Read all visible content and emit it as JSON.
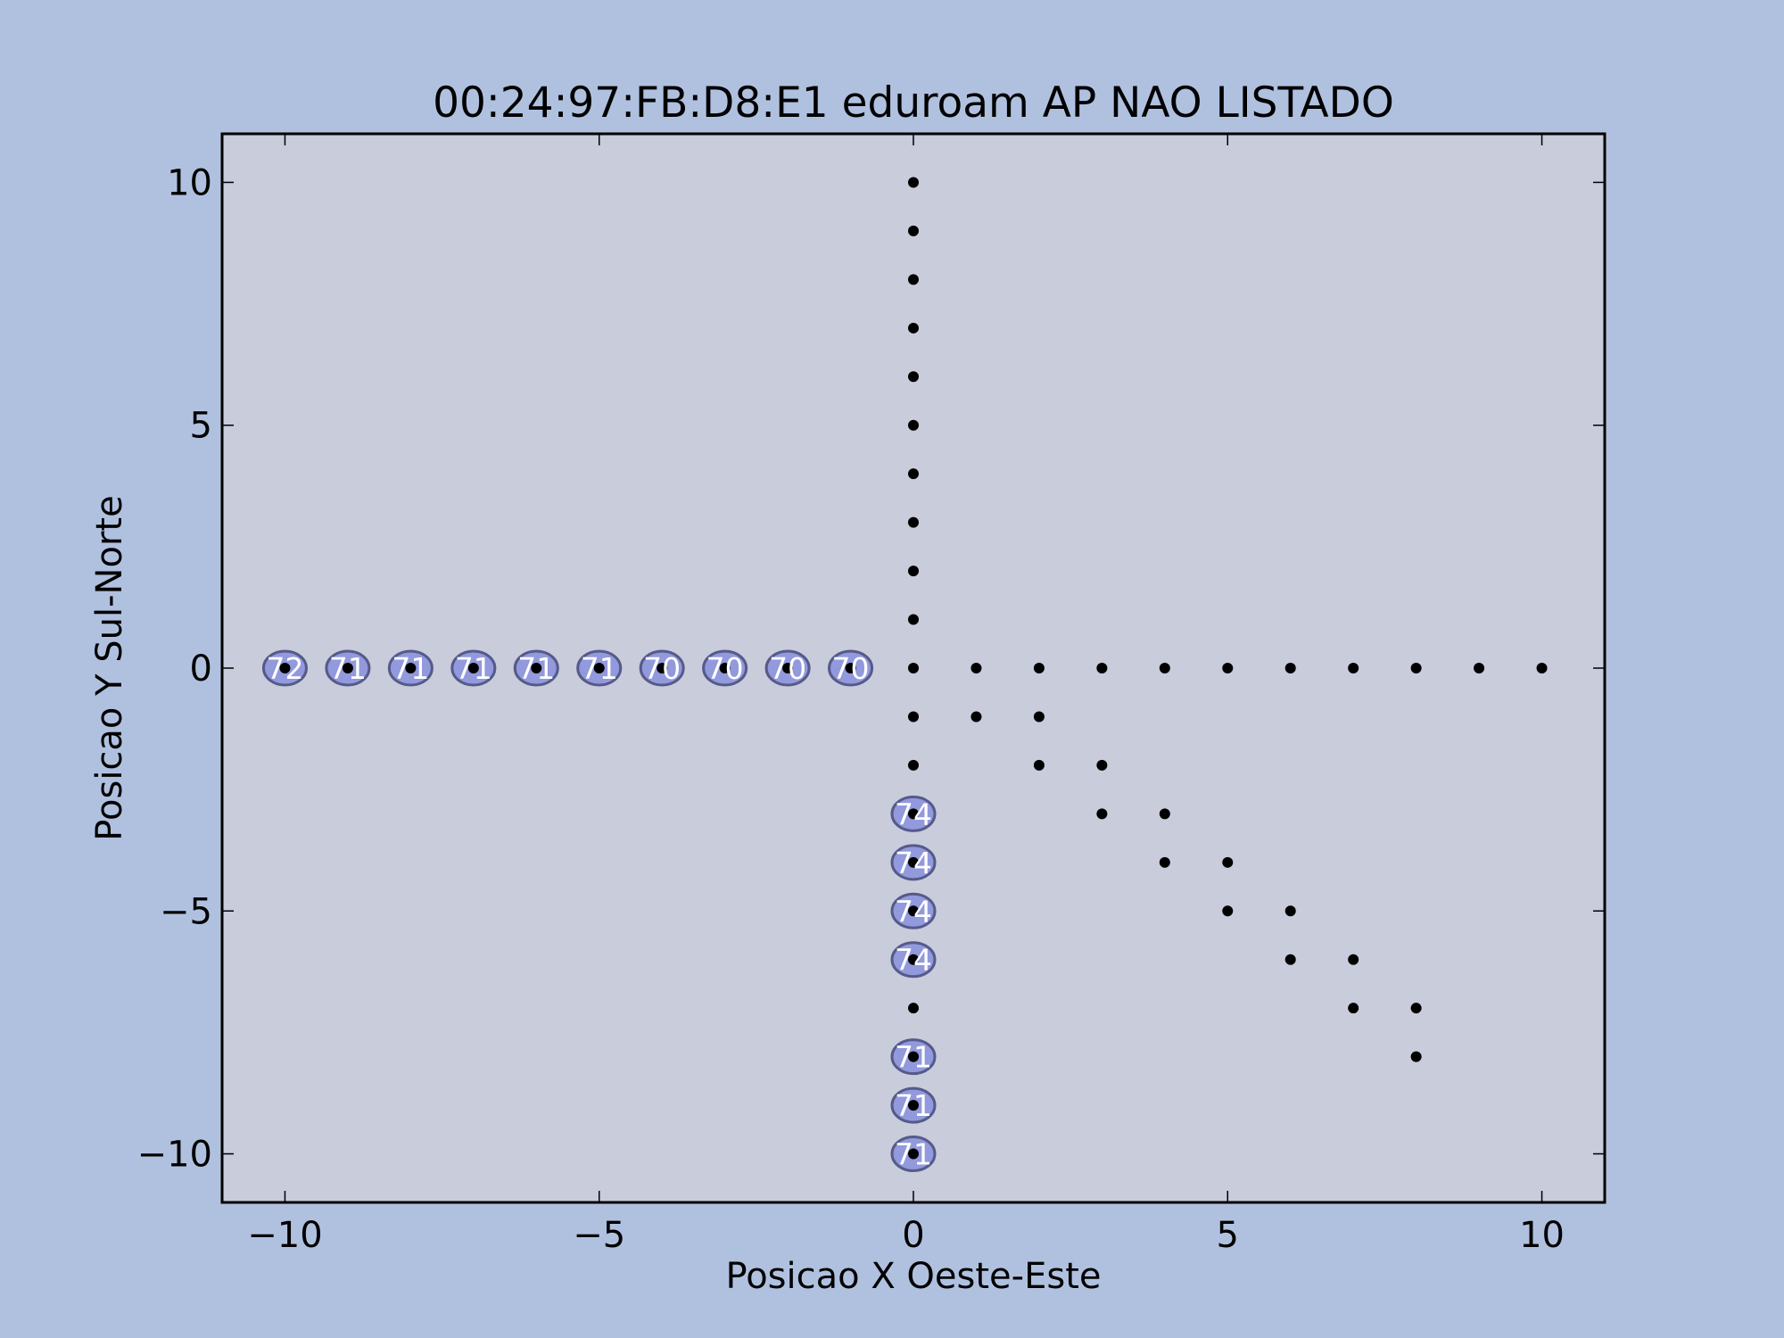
{
  "colors": {
    "background": "#b0c1e0",
    "plot_area": "#c8ccdb",
    "point": "#000000",
    "bubble_fill": "#8c93dc",
    "bubble_stroke": "#555a8a",
    "bubble_text": "#ffffff"
  },
  "chart_data": {
    "type": "scatter",
    "title": "00:24:97:FB:D8:E1 eduroam AP NAO LISTADO",
    "xlabel": "Posicao X Oeste-Este",
    "ylabel": "Posicao Y Sul-Norte",
    "xlim": [
      -11,
      11
    ],
    "ylim": [
      -11,
      11
    ],
    "xticks": [
      -10,
      -5,
      0,
      5,
      10
    ],
    "yticks": [
      -10,
      -5,
      0,
      5,
      10
    ],
    "xtick_labels": [
      "−10",
      "−5",
      "0",
      "5",
      "10"
    ],
    "ytick_labels": [
      "−10",
      "−5",
      "0",
      "5",
      "10"
    ],
    "grid": false,
    "points": [
      [
        -10,
        0
      ],
      [
        -9,
        0
      ],
      [
        -8,
        0
      ],
      [
        -7,
        0
      ],
      [
        -6,
        0
      ],
      [
        -5,
        0
      ],
      [
        -4,
        0
      ],
      [
        -3,
        0
      ],
      [
        -2,
        0
      ],
      [
        -1,
        0
      ],
      [
        0,
        0
      ],
      [
        1,
        0
      ],
      [
        2,
        0
      ],
      [
        3,
        0
      ],
      [
        4,
        0
      ],
      [
        5,
        0
      ],
      [
        6,
        0
      ],
      [
        7,
        0
      ],
      [
        8,
        0
      ],
      [
        9,
        0
      ],
      [
        10,
        0
      ],
      [
        0,
        1
      ],
      [
        0,
        2
      ],
      [
        0,
        3
      ],
      [
        0,
        4
      ],
      [
        0,
        5
      ],
      [
        0,
        6
      ],
      [
        0,
        7
      ],
      [
        0,
        8
      ],
      [
        0,
        9
      ],
      [
        0,
        10
      ],
      [
        0,
        -1
      ],
      [
        0,
        -2
      ],
      [
        0,
        -3
      ],
      [
        0,
        -4
      ],
      [
        0,
        -5
      ],
      [
        0,
        -6
      ],
      [
        0,
        -7
      ],
      [
        0,
        -8
      ],
      [
        0,
        -9
      ],
      [
        0,
        -10
      ],
      [
        1,
        -1
      ],
      [
        2,
        -1
      ],
      [
        2,
        -2
      ],
      [
        3,
        -2
      ],
      [
        3,
        -3
      ],
      [
        4,
        -3
      ],
      [
        4,
        -4
      ],
      [
        5,
        -4
      ],
      [
        5,
        -5
      ],
      [
        6,
        -5
      ],
      [
        6,
        -6
      ],
      [
        7,
        -6
      ],
      [
        7,
        -7
      ],
      [
        8,
        -7
      ],
      [
        8,
        -8
      ]
    ],
    "signal_labels": [
      {
        "x": -10,
        "y": 0,
        "value": 72
      },
      {
        "x": -9,
        "y": 0,
        "value": 71
      },
      {
        "x": -8,
        "y": 0,
        "value": 71
      },
      {
        "x": -7,
        "y": 0,
        "value": 71
      },
      {
        "x": -6,
        "y": 0,
        "value": 71
      },
      {
        "x": -5,
        "y": 0,
        "value": 71
      },
      {
        "x": -4,
        "y": 0,
        "value": 70
      },
      {
        "x": -3,
        "y": 0,
        "value": 70
      },
      {
        "x": -2,
        "y": 0,
        "value": 70
      },
      {
        "x": -1,
        "y": 0,
        "value": 70
      },
      {
        "x": 0,
        "y": -3,
        "value": 74
      },
      {
        "x": 0,
        "y": -4,
        "value": 74
      },
      {
        "x": 0,
        "y": -5,
        "value": 74
      },
      {
        "x": 0,
        "y": -6,
        "value": 74
      },
      {
        "x": 0,
        "y": -8,
        "value": 71
      },
      {
        "x": 0,
        "y": -9,
        "value": 71
      },
      {
        "x": 0,
        "y": -10,
        "value": 71
      }
    ]
  }
}
